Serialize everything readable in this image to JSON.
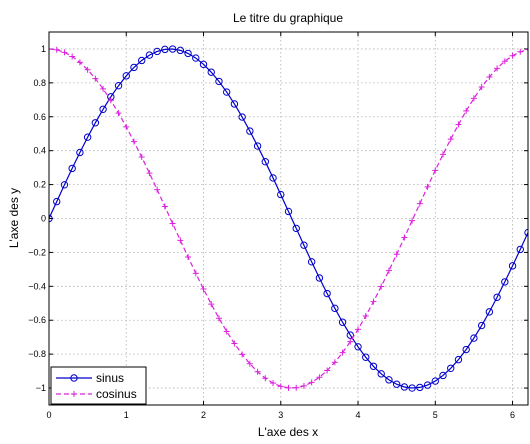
{
  "chart_data": {
    "type": "line",
    "title": "Le titre du graphique",
    "xlabel": "L'axe des x",
    "ylabel": "L'axe des y",
    "xlim": [
      0,
      6.2
    ],
    "ylim": [
      -1.1,
      1.1
    ],
    "grid": true,
    "x_ticks": [
      0,
      1,
      2,
      3,
      4,
      5,
      6
    ],
    "x_tick_labels": [
      "0",
      "1",
      "2",
      "3",
      "4",
      "5",
      "6"
    ],
    "y_ticks": [
      -1,
      -0.8,
      -0.6,
      -0.4,
      -0.2,
      0,
      0.2,
      0.4,
      0.6,
      0.8,
      1
    ],
    "y_tick_labels": [
      "−1",
      "−0.8",
      "−0.6",
      "−0.4",
      "−0.2",
      "0",
      "0.2",
      "0.4",
      "0.6",
      "0.8",
      "1"
    ],
    "legend_position": "bottom-left",
    "x": [
      0,
      0.1,
      0.2,
      0.3,
      0.4,
      0.5,
      0.6,
      0.7,
      0.8,
      0.9,
      1.0,
      1.1,
      1.2,
      1.3,
      1.4,
      1.5,
      1.6,
      1.7,
      1.8,
      1.9,
      2.0,
      2.1,
      2.2,
      2.3,
      2.4,
      2.5,
      2.6,
      2.7,
      2.8,
      2.9,
      3.0,
      3.1,
      3.2,
      3.3,
      3.4,
      3.5,
      3.6,
      3.7,
      3.8,
      3.9,
      4.0,
      4.1,
      4.2,
      4.3,
      4.4,
      4.5,
      4.6,
      4.7,
      4.8,
      4.9,
      5.0,
      5.1,
      5.2,
      5.3,
      5.4,
      5.5,
      5.6,
      5.7,
      5.8,
      5.9,
      6.0,
      6.1,
      6.2
    ],
    "series": [
      {
        "name": "sinus",
        "color": "#0000cc",
        "line_style": "solid",
        "marker": "circle",
        "values": [
          0,
          0.0998,
          0.1987,
          0.2955,
          0.3894,
          0.4794,
          0.5646,
          0.6442,
          0.7174,
          0.7833,
          0.8415,
          0.8912,
          0.932,
          0.9636,
          0.9854,
          0.9975,
          0.9996,
          0.9917,
          0.9738,
          0.9463,
          0.9093,
          0.8632,
          0.8085,
          0.7457,
          0.6755,
          0.5985,
          0.5155,
          0.4274,
          0.335,
          0.2392,
          0.1411,
          0.0416,
          -0.0584,
          -0.1577,
          -0.2555,
          -0.3508,
          -0.4425,
          -0.5298,
          -0.6119,
          -0.6878,
          -0.7568,
          -0.8183,
          -0.8716,
          -0.9162,
          -0.9516,
          -0.9775,
          -0.9937,
          -0.9999,
          -0.9962,
          -0.9825,
          -0.9589,
          -0.9258,
          -0.8835,
          -0.8323,
          -0.7728,
          -0.7055,
          -0.6313,
          -0.5507,
          -0.4646,
          -0.3739,
          -0.2794,
          -0.1822,
          -0.0831
        ]
      },
      {
        "name": "cosinus",
        "color": "#dd22dd",
        "line_style": "dashed",
        "marker": "plus",
        "values": [
          1,
          0.995,
          0.9801,
          0.9553,
          0.9211,
          0.8776,
          0.8253,
          0.7648,
          0.6967,
          0.6216,
          0.5403,
          0.4536,
          0.3624,
          0.2675,
          0.17,
          0.0707,
          -0.0292,
          -0.1288,
          -0.2272,
          -0.3233,
          -0.4161,
          -0.5048,
          -0.5885,
          -0.6663,
          -0.7374,
          -0.8011,
          -0.8569,
          -0.904,
          -0.9422,
          -0.971,
          -0.99,
          -0.9991,
          -0.9983,
          -0.9875,
          -0.9668,
          -0.9365,
          -0.8968,
          -0.8481,
          -0.791,
          -0.7259,
          -0.6536,
          -0.5748,
          -0.4903,
          -0.4008,
          -0.3073,
          -0.2108,
          -0.1122,
          -0.0124,
          0.0875,
          0.1865,
          0.2837,
          0.378,
          0.4685,
          0.5544,
          0.6347,
          0.7087,
          0.7756,
          0.8347,
          0.8855,
          0.9275,
          0.9602,
          0.9833,
          0.9965
        ]
      }
    ]
  }
}
